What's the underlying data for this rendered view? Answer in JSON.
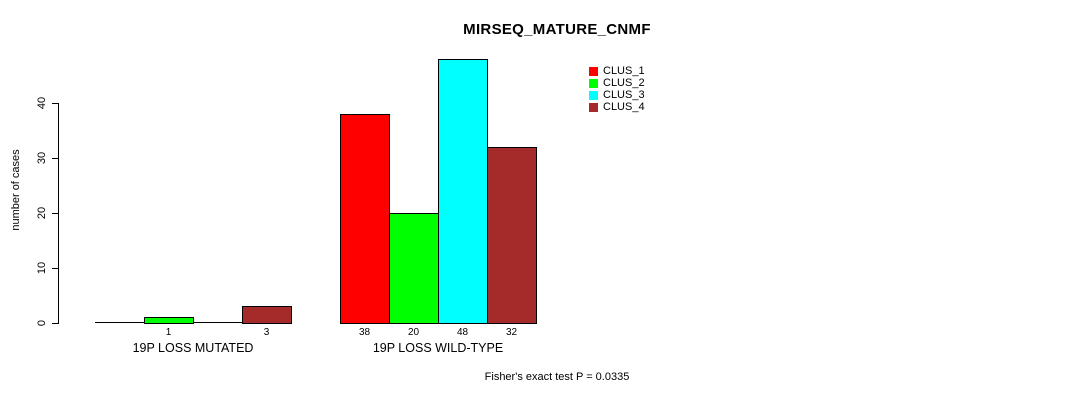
{
  "title": "MIRSEQ_MATURE_CNMF",
  "chart_data": {
    "type": "bar",
    "title": "MIRSEQ_MATURE_CNMF",
    "ylabel": "number of cases",
    "xlabel": "",
    "annotation": "Fisher's exact test P = 0.0335",
    "categories": [
      "19P LOSS MUTATED",
      "19P LOSS WILD-TYPE"
    ],
    "series": [
      {
        "name": "CLUS_1",
        "color": "#FF0000",
        "values": [
          0,
          38
        ]
      },
      {
        "name": "CLUS_2",
        "color": "#00FF00",
        "values": [
          1,
          20
        ]
      },
      {
        "name": "CLUS_3",
        "color": "#00FFFF",
        "values": [
          0,
          48
        ]
      },
      {
        "name": "CLUS_4",
        "color": "#A52A2A",
        "values": [
          3,
          32
        ]
      }
    ],
    "bar_value_labels": [
      [
        "",
        "1",
        "",
        "3"
      ],
      [
        "38",
        "20",
        "48",
        "32"
      ]
    ],
    "yticks": [
      0,
      10,
      20,
      30,
      40
    ],
    "ylim": [
      0,
      48
    ],
    "grid": false,
    "legend_position": "top-right",
    "bar_border_color": "#000000",
    "background_color": "#ffffff"
  }
}
